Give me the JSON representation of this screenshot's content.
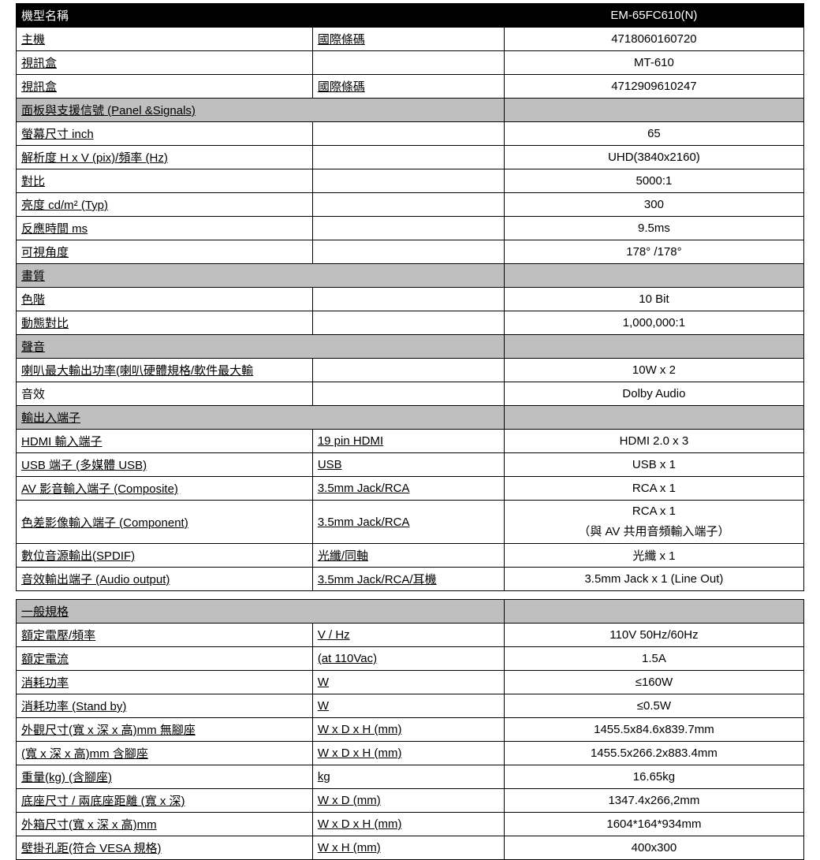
{
  "colors": {
    "header_bg": "#000000",
    "header_fg": "#ffffff",
    "section_bg": "#bfbfbf",
    "border": "#000000",
    "text": "#000000",
    "page_bg": "#ffffff"
  },
  "header": {
    "model_label": "機型名稱",
    "model_value": "EM-65FC610(N)"
  },
  "top_rows": [
    {
      "label": "主機",
      "mid": "國際條碼",
      "value": "4718060160720",
      "underline": true
    },
    {
      "label": "視訊盒",
      "mid": "",
      "value": "MT-610",
      "underline": true
    },
    {
      "label": "視訊盒",
      "mid": "國際條碼",
      "value": "4712909610247",
      "underline": true
    }
  ],
  "sections": [
    {
      "title": "面板與支援信號  (Panel &Signals)",
      "rows": [
        {
          "label": "螢幕尺寸  inch",
          "mid": "",
          "value": "65",
          "underline": true
        },
        {
          "label": "解析度  H x V (pix)/頻率    (Hz)",
          "mid": "",
          "value": "UHD(3840x2160)",
          "underline": true
        },
        {
          "label": "對比",
          "mid": "",
          "value": "5000:1",
          "underline": true
        },
        {
          "label": "亮度      cd/m²  (Typ)",
          "mid": "",
          "value": "300",
          "underline": true
        },
        {
          "label": "反應時間    ms",
          "mid": "",
          "value": "9.5ms",
          "underline": true
        },
        {
          "label": "可視角度",
          "mid": "",
          "value": "178° /178°",
          "underline": true
        }
      ]
    },
    {
      "title": "畫質",
      "rows": [
        {
          "label": "色階",
          "mid": "",
          "value": "10 Bit",
          "underline": true
        },
        {
          "label": "動態對比",
          "mid": "",
          "value": "1,000,000:1",
          "underline": true
        }
      ]
    },
    {
      "title": "聲音",
      "rows": [
        {
          "label": "喇叭最大輸出功率(喇叭硬體規格/軟件最大輸",
          "mid": "",
          "value": "10W x 2",
          "underline": true
        },
        {
          "label": "音效",
          "mid": "",
          "value": "Dolby Audio",
          "underline": false
        }
      ]
    },
    {
      "title": "輸出入端子",
      "rows": [
        {
          "label": "HDMI  輸入端子",
          "mid": "19 pin HDMI",
          "value": "HDMI 2.0 x 3",
          "underline": true
        },
        {
          "label": "USB  端子  (多媒體 USB)",
          "mid": "USB",
          "value": "USB x 1",
          "underline": true
        },
        {
          "label": "AV  影音輸入端子  (Composite)",
          "mid": "3.5mm Jack/RCA",
          "value": "RCA x 1",
          "underline": true
        },
        {
          "label": "色差影像輸入端子  (Component)",
          "mid": "3.5mm Jack/RCA",
          "value": "RCA x 1\n\n（與 AV 共用音頻輸入端子）",
          "underline": true,
          "tall": true,
          "value_multiline": [
            "RCA x 1",
            "（與 AV 共用音頻輸入端子）"
          ]
        },
        {
          "label": "數位音源輸出(SPDIF)",
          "mid": "光纖/同軸",
          "value": "光纖  x 1",
          "underline": true
        },
        {
          "label": "音效輸出端子  (Audio output)",
          "mid": "3.5mm Jack/RCA/耳機",
          "value": "3.5mm Jack x 1 (Line Out)",
          "underline": true
        }
      ]
    }
  ],
  "gap": true,
  "general": {
    "title": "一般規格",
    "rows": [
      {
        "label": "額定電壓/頻率",
        "mid": "V / Hz",
        "value": "110V    50Hz/60Hz",
        "underline": true
      },
      {
        "label": "額定電流",
        "mid": "(at 110Vac)",
        "value": "1.5A",
        "underline": true
      },
      {
        "label": "消耗功率",
        "mid": "W",
        "value": "≤160W",
        "underline": true
      },
      {
        "label": "消耗功率  (Stand by)",
        "mid": "W",
        "value": "≤0.5W",
        "underline": true
      },
      {
        "label": "外觀尺寸(寬  x  深  x  高)mm 無腳座",
        "mid": "W x D x H (mm)",
        "value": "1455.5x84.6x839.7mm",
        "underline": true
      },
      {
        "label": "            (寬  x  深  x  高)mm 含腳座",
        "mid": "W x D x H (mm)",
        "value": "1455.5x266.2x883.4mm",
        "underline": true,
        "indent": true
      },
      {
        "label": "重量(kg)    (含腳座)",
        "mid": "kg",
        "value": "16.65kg",
        "underline": true
      },
      {
        "label": "底座尺寸  /  兩底座距離  (寬  x  深)",
        "mid": "W x D (mm)",
        "value": "1347.4x266,2mm",
        "underline": true
      },
      {
        "label": "外箱尺寸(寬  x  深  x  高)mm",
        "mid": "W x D x H (mm)",
        "value": "1604*164*934mm",
        "underline": true
      },
      {
        "label": "壁掛孔距(符合 VESA 規格)",
        "mid": "W x H (mm)",
        "value": "400x300",
        "underline": true
      }
    ]
  }
}
